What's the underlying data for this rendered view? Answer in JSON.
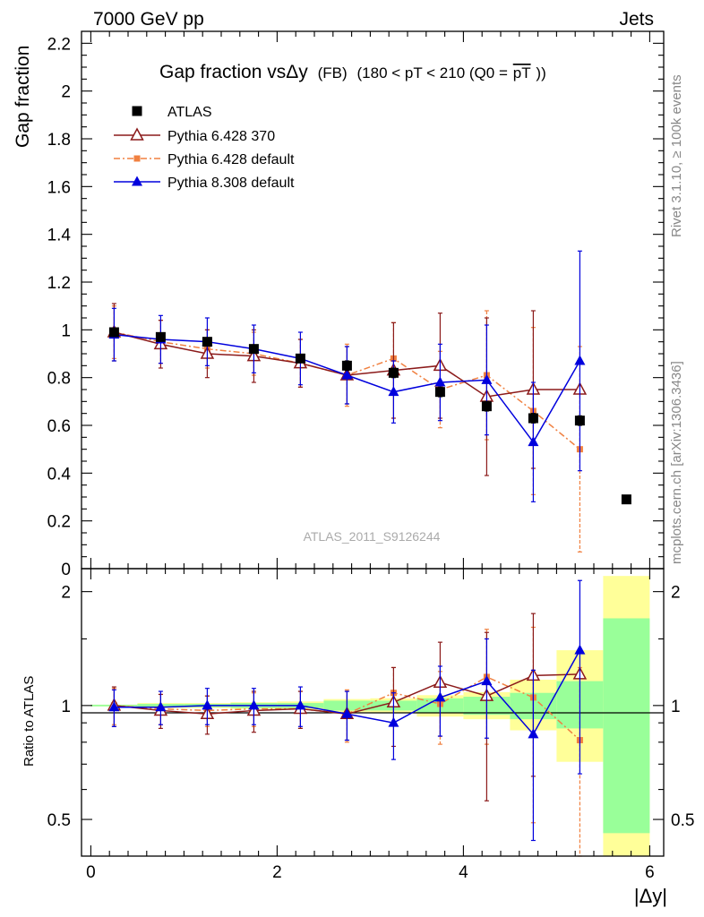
{
  "header": {
    "energy_label": "7000 GeV pp",
    "process_label": "Jets",
    "plot_title_main": "Gap fraction vsΔy",
    "plot_title_fb": "(FB)",
    "plot_title_range": "(180 < pT < 210 (Q0 =",
    "plot_title_pt": "pT",
    "plot_title_close": "))",
    "analysis_tag": "ATLAS_2011_S9126244",
    "side_rivet": "Rivet 3.1.10, ≥ 100k events",
    "side_mcplots": "mcplots.cern.ch [arXiv:1306.3436]"
  },
  "colors": {
    "atlas": "#000000",
    "pythia6_370": "#8b1a1a",
    "pythia6_default": "#f08040",
    "pythia8_default": "#0000dd",
    "band_inner": "#99ff99",
    "band_outer": "#ffff99"
  },
  "chart_data": [
    {
      "type": "scatter",
      "panel": "main",
      "ylabel": "Gap fraction",
      "ylim": [
        0,
        2.25
      ],
      "xlim": [
        -0.1,
        6.15
      ],
      "yticks": [
        0,
        0.2,
        0.4,
        0.6,
        0.8,
        1,
        1.2,
        1.4,
        1.6,
        1.8,
        2,
        2.2
      ],
      "ytick_labels": [
        "0",
        "0.2",
        "0.4",
        "0.6",
        "0.8",
        "1",
        "1.2",
        "1.4",
        "1.6",
        "1.8",
        "2",
        "2.2"
      ],
      "legend_position": "top-left",
      "series": [
        {
          "name": "ATLAS",
          "marker": "square",
          "x": [
            0.25,
            0.75,
            1.25,
            1.75,
            2.25,
            2.75,
            3.25,
            3.75,
            4.25,
            4.75,
            5.25,
            5.75
          ],
          "y": [
            0.99,
            0.97,
            0.95,
            0.92,
            0.88,
            0.85,
            0.82,
            0.74,
            0.68,
            0.63,
            0.62,
            0.29
          ],
          "err": [
            0.01,
            0.01,
            0.01,
            0.01,
            0.01,
            0.02,
            0.02,
            0.02,
            0.02,
            0.02,
            0.02,
            0.01
          ]
        },
        {
          "name": "Pythia 6.428 370",
          "marker": "open-triangle",
          "line": "solid",
          "x": [
            0.25,
            0.75,
            1.25,
            1.75,
            2.25,
            2.75,
            3.25,
            3.75,
            4.25,
            4.75,
            5.25
          ],
          "y": [
            0.99,
            0.94,
            0.9,
            0.89,
            0.86,
            0.81,
            0.83,
            0.85,
            0.72,
            0.75,
            0.75
          ],
          "err": [
            0.12,
            0.1,
            0.1,
            0.11,
            0.1,
            0.12,
            0.2,
            0.22,
            0.33,
            0.33,
            0.0
          ]
        },
        {
          "name": "Pythia 6.428 default",
          "marker": "small-square",
          "line": "dashdot",
          "x": [
            0.25,
            0.75,
            1.25,
            1.75,
            2.25,
            2.75,
            3.25,
            3.75,
            4.25,
            4.75,
            5.25
          ],
          "y": [
            0.99,
            0.95,
            0.92,
            0.9,
            0.86,
            0.81,
            0.88,
            0.75,
            0.81,
            0.66,
            0.5
          ],
          "err": [
            0.11,
            0.09,
            0.08,
            0.09,
            0.1,
            0.13,
            0.15,
            0.16,
            0.27,
            0.35,
            0.43
          ]
        },
        {
          "name": "Pythia 8.308 default",
          "marker": "triangle",
          "line": "solid",
          "x": [
            0.25,
            0.75,
            1.25,
            1.75,
            2.25,
            2.75,
            3.25,
            3.75,
            4.25,
            4.75,
            5.25
          ],
          "y": [
            0.98,
            0.96,
            0.95,
            0.92,
            0.88,
            0.81,
            0.74,
            0.78,
            0.79,
            0.53,
            0.87
          ],
          "err": [
            0.11,
            0.1,
            0.1,
            0.1,
            0.11,
            0.12,
            0.13,
            0.16,
            0.23,
            0.25,
            0.46
          ]
        }
      ]
    },
    {
      "type": "scatter",
      "panel": "ratio",
      "xlabel": "|Δy|",
      "ylabel": "Ratio to ATLAS",
      "yscale": "log",
      "ylim": [
        0.4,
        2.3
      ],
      "xlim": [
        -0.1,
        6.15
      ],
      "xticks": [
        0,
        2,
        4,
        6
      ],
      "xtick_labels": [
        "0",
        "2",
        "4",
        "6"
      ],
      "yticks": [
        0.5,
        1,
        2
      ],
      "ytick_labels": [
        "0.5",
        "1",
        "2"
      ],
      "reference_band": {
        "x_edges": [
          0.0,
          0.5,
          1.0,
          1.5,
          2.0,
          2.5,
          3.0,
          3.5,
          4.0,
          4.5,
          5.0,
          5.5,
          6.0
        ],
        "inner": [
          [
            0.995,
            1.005
          ],
          [
            0.99,
            1.01
          ],
          [
            0.99,
            1.01
          ],
          [
            0.985,
            1.015
          ],
          [
            0.985,
            1.015
          ],
          [
            0.97,
            1.03
          ],
          [
            0.97,
            1.03
          ],
          [
            0.955,
            1.045
          ],
          [
            0.945,
            1.055
          ],
          [
            0.92,
            1.08
          ],
          [
            0.87,
            1.16
          ],
          [
            0.46,
            1.7
          ]
        ],
        "outer": [
          [
            0.995,
            1.005
          ],
          [
            0.985,
            1.015
          ],
          [
            0.985,
            1.015
          ],
          [
            0.98,
            1.02
          ],
          [
            0.975,
            1.025
          ],
          [
            0.96,
            1.04
          ],
          [
            0.955,
            1.045
          ],
          [
            0.935,
            1.065
          ],
          [
            0.92,
            1.085
          ],
          [
            0.86,
            1.17
          ],
          [
            0.71,
            1.4
          ],
          [
            0.4,
            2.2
          ]
        ]
      },
      "series": [
        {
          "name": "Pythia 6.428 370",
          "x": [
            0.25,
            0.75,
            1.25,
            1.75,
            2.25,
            2.75,
            3.25,
            3.75,
            4.25,
            4.75,
            5.25
          ],
          "y": [
            1.0,
            0.97,
            0.95,
            0.97,
            0.98,
            0.95,
            1.02,
            1.15,
            1.06,
            1.2,
            1.21
          ],
          "err": [
            0.12,
            0.1,
            0.11,
            0.12,
            0.11,
            0.14,
            0.24,
            0.32,
            0.5,
            0.55,
            0.0
          ]
        },
        {
          "name": "Pythia 6.428 default",
          "x": [
            0.25,
            0.75,
            1.25,
            1.75,
            2.25,
            2.75,
            3.25,
            3.75,
            4.25,
            4.75,
            5.25
          ],
          "y": [
            1.0,
            0.98,
            0.97,
            0.98,
            0.98,
            0.95,
            1.08,
            1.01,
            1.19,
            1.05,
            0.81
          ],
          "err": [
            0.11,
            0.09,
            0.09,
            0.1,
            0.11,
            0.15,
            0.18,
            0.22,
            0.4,
            0.56,
            0.45
          ]
        },
        {
          "name": "Pythia 8.308 default",
          "x": [
            0.25,
            0.75,
            1.25,
            1.75,
            2.25,
            2.75,
            3.25,
            3.75,
            4.25,
            4.75,
            5.25
          ],
          "y": [
            0.99,
            0.99,
            1.0,
            1.0,
            1.0,
            0.95,
            0.9,
            1.05,
            1.16,
            0.84,
            1.4
          ],
          "err": [
            0.11,
            0.1,
            0.11,
            0.11,
            0.12,
            0.14,
            0.18,
            0.22,
            0.34,
            0.4,
            0.74
          ]
        }
      ]
    }
  ]
}
